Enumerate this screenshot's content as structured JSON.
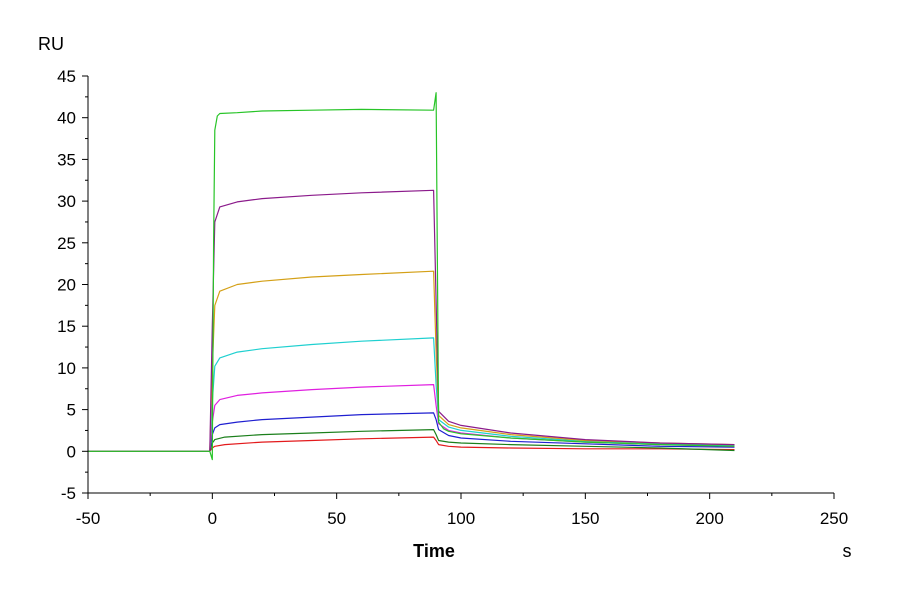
{
  "chart_data": {
    "type": "line",
    "title": "",
    "xlabel": "Time",
    "xunit": "s",
    "ylabel": "RU",
    "xlim": [
      -50,
      250
    ],
    "ylim": [
      -5,
      45
    ],
    "xticks": [
      -50,
      0,
      50,
      100,
      150,
      200,
      250
    ],
    "yticks": [
      -5,
      0,
      5,
      10,
      15,
      20,
      25,
      30,
      35,
      40,
      45
    ],
    "x_tick_labels": [
      "-50",
      "0",
      "50",
      "100",
      "150",
      "200",
      "250"
    ],
    "y_tick_labels": [
      "-5",
      "0",
      "5",
      "10",
      "15",
      "20",
      "25",
      "30",
      "35",
      "40",
      "45"
    ],
    "grid": false,
    "legend": "none",
    "series": [
      {
        "color": "#e31a1c",
        "x": [
          -50,
          -1,
          0,
          1,
          5,
          20,
          40,
          60,
          89,
          90,
          91,
          95,
          100,
          120,
          150,
          180,
          210
        ],
        "y": [
          0,
          0,
          0.4,
          0.6,
          0.8,
          1.1,
          1.3,
          1.5,
          1.7,
          1.3,
          0.8,
          0.6,
          0.5,
          0.4,
          0.3,
          0.3,
          0.2
        ]
      },
      {
        "color": "#1b7f1b",
        "x": [
          -50,
          -1,
          0,
          1,
          5,
          20,
          40,
          60,
          89,
          90,
          91,
          95,
          100,
          120,
          150,
          180,
          210
        ],
        "y": [
          0,
          0,
          1.0,
          1.4,
          1.7,
          2.0,
          2.2,
          2.4,
          2.6,
          2.0,
          1.3,
          1.1,
          1.0,
          0.8,
          0.6,
          0.4,
          0.1
        ]
      },
      {
        "color": "#1f1fd0",
        "x": [
          -50,
          -1,
          0,
          1,
          3,
          10,
          20,
          40,
          60,
          89,
          90,
          91,
          95,
          100,
          120,
          150,
          180,
          210
        ],
        "y": [
          0,
          0,
          2.0,
          2.8,
          3.2,
          3.5,
          3.8,
          4.1,
          4.4,
          4.6,
          3.8,
          2.6,
          1.9,
          1.6,
          1.2,
          0.9,
          0.6,
          0.5
        ]
      },
      {
        "color": "#e01fe0",
        "x": [
          -50,
          -1,
          0,
          1,
          3,
          10,
          20,
          40,
          60,
          89,
          90,
          91,
          95,
          100,
          120,
          150,
          180,
          210
        ],
        "y": [
          0,
          0,
          3.5,
          5.5,
          6.2,
          6.7,
          7.0,
          7.4,
          7.7,
          8.0,
          5.5,
          3.3,
          2.5,
          2.2,
          1.6,
          1.1,
          0.8,
          0.6
        ]
      },
      {
        "color": "#1fd0d0",
        "x": [
          -50,
          -1,
          0,
          1,
          3,
          10,
          20,
          40,
          60,
          89,
          90,
          91,
          95,
          100,
          120,
          150,
          180,
          210
        ],
        "y": [
          0,
          0,
          6.0,
          10.2,
          11.2,
          11.9,
          12.3,
          12.8,
          13.2,
          13.6,
          8.0,
          3.8,
          2.9,
          2.5,
          1.8,
          1.2,
          0.9,
          0.7
        ]
      },
      {
        "color": "#d4a017",
        "x": [
          -50,
          -1,
          0,
          1,
          3,
          10,
          20,
          40,
          60,
          89,
          90,
          91,
          95,
          100,
          120,
          150,
          180,
          210
        ],
        "y": [
          0,
          0,
          10.0,
          17.5,
          19.2,
          20.0,
          20.4,
          20.9,
          21.2,
          21.6,
          12.0,
          4.3,
          3.2,
          2.8,
          2.0,
          1.3,
          1.0,
          0.8
        ]
      },
      {
        "color": "#8b1a8b",
        "x": [
          -50,
          -1,
          0,
          1,
          3,
          10,
          20,
          40,
          60,
          89,
          90,
          91,
          95,
          100,
          120,
          150,
          180,
          210
        ],
        "y": [
          0,
          0,
          15.0,
          27.5,
          29.3,
          29.9,
          30.3,
          30.7,
          31.0,
          31.3,
          18.0,
          4.8,
          3.6,
          3.1,
          2.2,
          1.4,
          1.0,
          0.8
        ]
      },
      {
        "color": "#27c427",
        "x": [
          -50,
          -1,
          0,
          0.5,
          1,
          2,
          3,
          10,
          20,
          40,
          60,
          89,
          90,
          91,
          93,
          95,
          100,
          120,
          150,
          180,
          210
        ],
        "y": [
          0,
          0,
          -1.0,
          25.0,
          38.5,
          40.2,
          40.5,
          40.6,
          40.8,
          40.9,
          41.0,
          40.9,
          43.0,
          3.5,
          2.7,
          2.4,
          2.1,
          1.6,
          1.1,
          0.8,
          0.6
        ]
      }
    ]
  }
}
